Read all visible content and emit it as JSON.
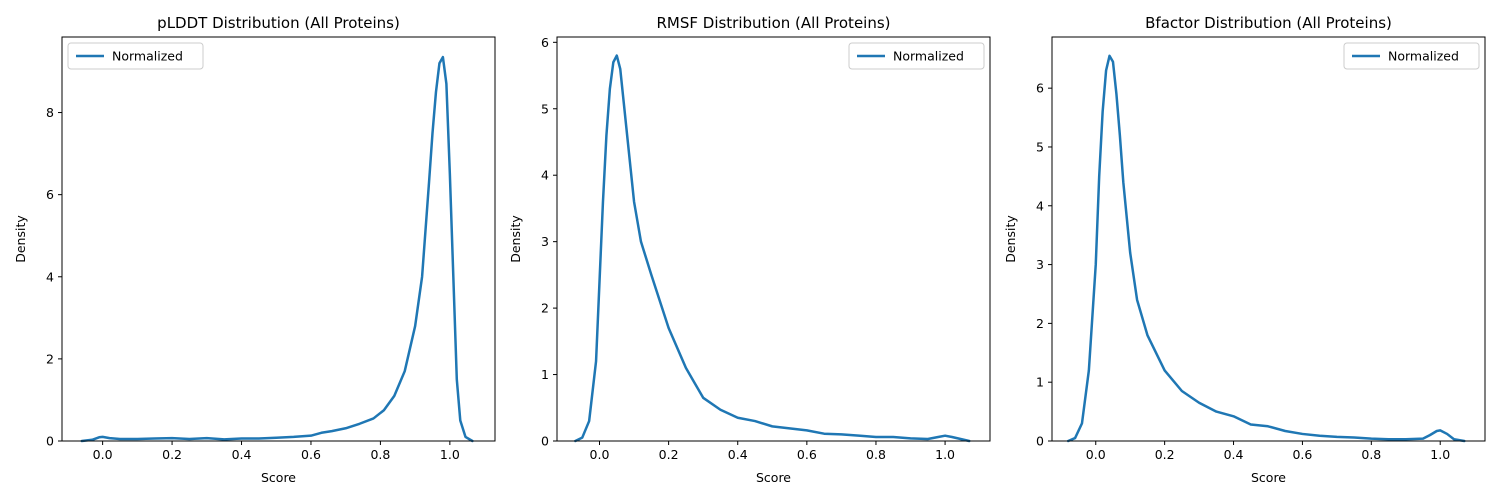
{
  "colors": {
    "line": "#1f77b4",
    "axis": "#000000",
    "legend_border": "#cccccc",
    "background": "#ffffff"
  },
  "chart_data": [
    {
      "type": "line",
      "title": "pLDDT Distribution (All Proteins)",
      "xlabel": "Score",
      "ylabel": "Density",
      "xlim": [
        -0.117,
        1.13
      ],
      "ylim": [
        0,
        9.84
      ],
      "xticks": [
        0.0,
        0.2,
        0.4,
        0.6,
        0.8,
        1.0
      ],
      "xtick_labels": [
        "0.0",
        "0.2",
        "0.4",
        "0.6",
        "0.8",
        "1.0"
      ],
      "yticks": [
        0,
        2,
        4,
        6,
        8
      ],
      "ytick_labels": [
        "0",
        "2",
        "4",
        "6",
        "8"
      ],
      "legend": {
        "position": "top-left",
        "entries": [
          "Normalized"
        ]
      },
      "grid": false,
      "series": [
        {
          "name": "Normalized",
          "x": [
            -0.06,
            -0.03,
            -0.01,
            0.0,
            0.02,
            0.05,
            0.1,
            0.15,
            0.2,
            0.25,
            0.3,
            0.35,
            0.4,
            0.45,
            0.5,
            0.55,
            0.6,
            0.63,
            0.66,
            0.7,
            0.74,
            0.78,
            0.81,
            0.84,
            0.87,
            0.9,
            0.92,
            0.94,
            0.95,
            0.96,
            0.97,
            0.98,
            0.99,
            1.0,
            1.01,
            1.02,
            1.03,
            1.045,
            1.065
          ],
          "y": [
            0.0,
            0.03,
            0.09,
            0.1,
            0.07,
            0.05,
            0.05,
            0.06,
            0.07,
            0.05,
            0.07,
            0.04,
            0.06,
            0.06,
            0.08,
            0.1,
            0.13,
            0.2,
            0.24,
            0.31,
            0.42,
            0.55,
            0.75,
            1.1,
            1.7,
            2.8,
            4.0,
            6.3,
            7.5,
            8.5,
            9.2,
            9.35,
            8.7,
            6.5,
            4.0,
            1.5,
            0.5,
            0.1,
            0.0
          ]
        }
      ]
    },
    {
      "type": "line",
      "title": "RMSF Distribution (All Proteins)",
      "xlabel": "Score",
      "ylabel": "Density",
      "xlim": [
        -0.123,
        1.13
      ],
      "ylim": [
        0,
        6.08
      ],
      "xticks": [
        0.0,
        0.2,
        0.4,
        0.6,
        0.8,
        1.0
      ],
      "xtick_labels": [
        "0.0",
        "0.2",
        "0.4",
        "0.6",
        "0.8",
        "1.0"
      ],
      "yticks": [
        0,
        1,
        2,
        3,
        4,
        5,
        6
      ],
      "ytick_labels": [
        "0",
        "1",
        "2",
        "3",
        "4",
        "5",
        "6"
      ],
      "legend": {
        "position": "top-right",
        "entries": [
          "Normalized"
        ]
      },
      "grid": false,
      "series": [
        {
          "name": "Normalized",
          "x": [
            -0.07,
            -0.05,
            -0.03,
            -0.01,
            0.0,
            0.01,
            0.02,
            0.03,
            0.04,
            0.05,
            0.06,
            0.07,
            0.08,
            0.09,
            0.1,
            0.12,
            0.15,
            0.2,
            0.25,
            0.3,
            0.35,
            0.4,
            0.45,
            0.5,
            0.55,
            0.6,
            0.65,
            0.7,
            0.75,
            0.8,
            0.85,
            0.9,
            0.95,
            0.98,
            1.0,
            1.02,
            1.07
          ],
          "y": [
            0.0,
            0.05,
            0.3,
            1.2,
            2.4,
            3.6,
            4.6,
            5.3,
            5.7,
            5.8,
            5.6,
            5.1,
            4.6,
            4.1,
            3.6,
            3.0,
            2.5,
            1.7,
            1.1,
            0.65,
            0.47,
            0.35,
            0.3,
            0.22,
            0.19,
            0.16,
            0.11,
            0.1,
            0.08,
            0.06,
            0.06,
            0.04,
            0.03,
            0.06,
            0.08,
            0.06,
            0.0
          ]
        }
      ]
    },
    {
      "type": "line",
      "title": "Bfactor Distribution (All Proteins)",
      "xlabel": "Score",
      "ylabel": "Density",
      "xlim": [
        -0.127,
        1.13
      ],
      "ylim": [
        0,
        6.87
      ],
      "xticks": [
        0.0,
        0.2,
        0.4,
        0.6,
        0.8,
        1.0
      ],
      "xtick_labels": [
        "0.0",
        "0.2",
        "0.4",
        "0.6",
        "0.8",
        "1.0"
      ],
      "yticks": [
        0,
        1,
        2,
        3,
        4,
        5,
        6
      ],
      "ytick_labels": [
        "0",
        "1",
        "2",
        "3",
        "4",
        "5",
        "6"
      ],
      "legend": {
        "position": "top-right",
        "entries": [
          "Normalized"
        ]
      },
      "grid": false,
      "series": [
        {
          "name": "Normalized",
          "x": [
            -0.08,
            -0.06,
            -0.04,
            -0.02,
            0.0,
            0.01,
            0.02,
            0.03,
            0.04,
            0.05,
            0.06,
            0.07,
            0.08,
            0.1,
            0.12,
            0.15,
            0.2,
            0.25,
            0.3,
            0.35,
            0.4,
            0.45,
            0.5,
            0.55,
            0.6,
            0.65,
            0.7,
            0.75,
            0.8,
            0.85,
            0.9,
            0.95,
            0.97,
            0.99,
            1.0,
            1.02,
            1.04,
            1.07
          ],
          "y": [
            0.0,
            0.05,
            0.3,
            1.2,
            3.0,
            4.5,
            5.6,
            6.3,
            6.55,
            6.45,
            5.9,
            5.2,
            4.4,
            3.2,
            2.4,
            1.8,
            1.2,
            0.85,
            0.65,
            0.5,
            0.42,
            0.28,
            0.25,
            0.17,
            0.12,
            0.09,
            0.07,
            0.06,
            0.04,
            0.03,
            0.03,
            0.04,
            0.1,
            0.17,
            0.18,
            0.12,
            0.03,
            0.0
          ]
        }
      ]
    }
  ]
}
